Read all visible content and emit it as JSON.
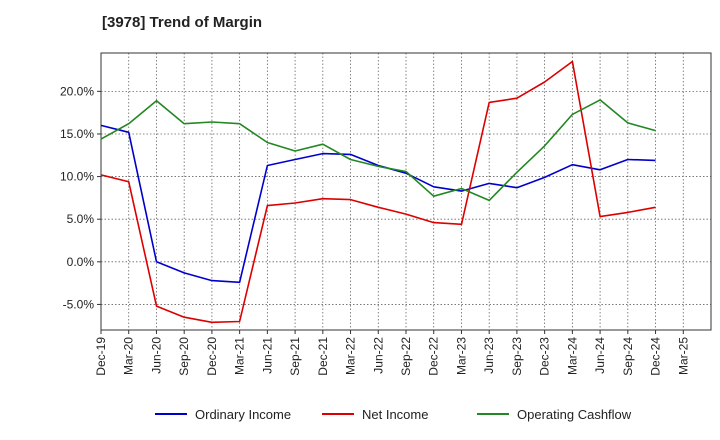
{
  "chart_data": {
    "type": "line",
    "title": "[3978]  Trend of Margin",
    "xlabel": "",
    "ylabel": "",
    "categories": [
      "Dec-19",
      "Mar-20",
      "Jun-20",
      "Sep-20",
      "Dec-20",
      "Mar-21",
      "Jun-21",
      "Sep-21",
      "Dec-21",
      "Mar-22",
      "Jun-22",
      "Sep-22",
      "Dec-22",
      "Mar-23",
      "Jun-23",
      "Sep-23",
      "Dec-23",
      "Mar-24",
      "Jun-24",
      "Sep-24",
      "Dec-24",
      "Mar-25"
    ],
    "ylim": [
      -8,
      24.5
    ],
    "yticks": [
      -5,
      0,
      5,
      10,
      15,
      20
    ],
    "ytick_labels": [
      "-5.0%",
      "0.0%",
      "5.0%",
      "10.0%",
      "15.0%",
      "20.0%"
    ],
    "grid": true,
    "legend_position": "bottom",
    "series": [
      {
        "name": "Ordinary Income",
        "color": "#0000cc",
        "values": [
          16.0,
          15.2,
          0.0,
          -1.3,
          -2.2,
          -2.4,
          11.3,
          12.0,
          12.7,
          12.6,
          11.3,
          10.4,
          8.8,
          8.3,
          9.2,
          8.7,
          9.9,
          11.4,
          10.8,
          12.0,
          11.9,
          null
        ]
      },
      {
        "name": "Net Income",
        "color": "#dd0000",
        "values": [
          10.2,
          9.4,
          -5.2,
          -6.5,
          -7.1,
          -7.0,
          6.6,
          6.9,
          7.4,
          7.3,
          6.4,
          5.6,
          4.6,
          4.4,
          18.7,
          19.2,
          21.1,
          23.5,
          5.3,
          5.8,
          6.4,
          null
        ]
      },
      {
        "name": "Operating Cashflow",
        "color": "#228822",
        "values": [
          14.4,
          16.2,
          18.9,
          16.2,
          16.4,
          16.2,
          14.0,
          13.0,
          13.8,
          12.0,
          11.2,
          10.6,
          7.7,
          8.6,
          7.2,
          10.5,
          13.6,
          17.3,
          19.0,
          16.3,
          15.4,
          null
        ]
      }
    ]
  }
}
